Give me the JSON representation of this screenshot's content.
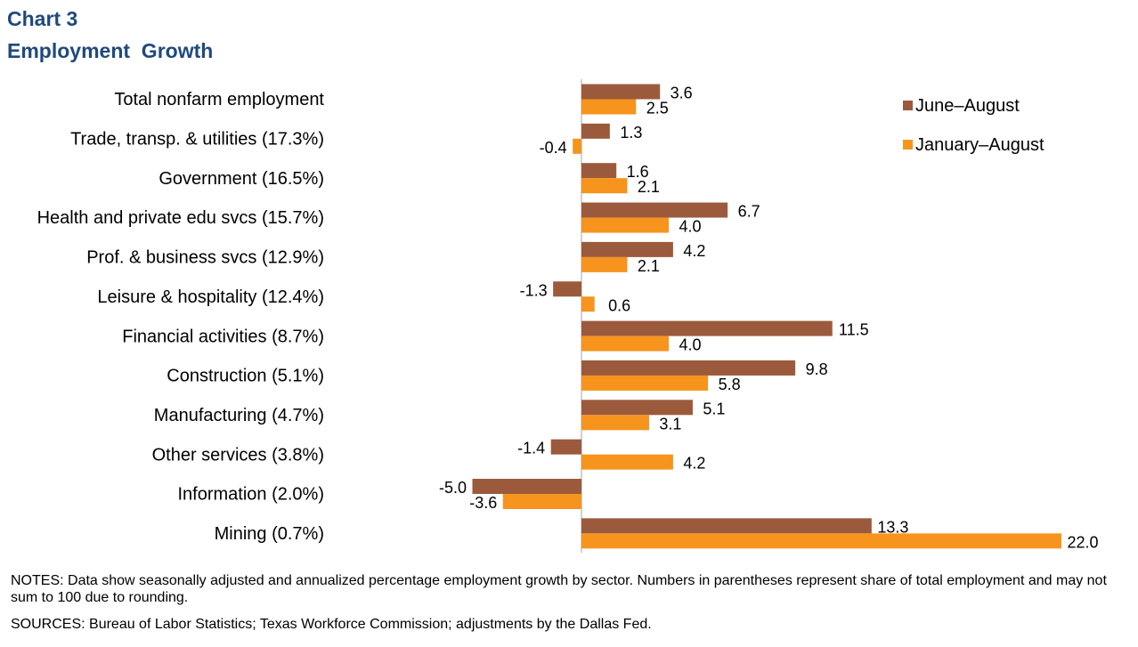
{
  "header": {
    "label": "Chart 3",
    "title": "Employment  Growth"
  },
  "chart_data": {
    "type": "bar",
    "orientation": "horizontal",
    "categories": [
      "Total nonfarm employment",
      "Trade, transp. & utilities (17.3%)",
      "Government (16.5%)",
      "Health and private edu svcs (15.7%)",
      "Prof. & business svcs (12.9%)",
      "Leisure & hospitality (12.4%)",
      "Financial activities (8.7%)",
      "Construction (5.1%)",
      "Manufacturing (4.7%)",
      "Other services (3.8%)",
      "Information (2.0%)",
      "Mining (0.7%)"
    ],
    "series": [
      {
        "name": "June–August",
        "color": "#9c5a3c",
        "values": [
          3.6,
          1.3,
          1.6,
          6.7,
          4.2,
          -1.3,
          11.5,
          9.8,
          5.1,
          -1.4,
          -5.0,
          13.3
        ],
        "labels": [
          "3.6",
          "1.3",
          "1.6",
          "6.7",
          "4.2",
          "-1.3",
          "11.5",
          "9.8",
          "5.1",
          "-1.4",
          "-5.0",
          "13.3"
        ]
      },
      {
        "name": "January–August",
        "color": "#f7941d",
        "values": [
          2.5,
          -0.4,
          2.1,
          4.0,
          2.1,
          0.6,
          4.0,
          5.8,
          3.1,
          4.2,
          -3.6,
          22.0
        ],
        "labels": [
          "2.5",
          "-0.4",
          "2.1",
          "4.0",
          "2.1",
          "0.6",
          "4.0",
          "5.8",
          "3.1",
          "4.2",
          "-3.6",
          "22.0"
        ]
      }
    ],
    "xlim": [
      -5,
      22
    ],
    "grid": false,
    "legend_position": "top-right"
  },
  "footer": {
    "notes": "NOTES: Data show seasonally adjusted and annualized percentage employment growth by sector. Numbers in parentheses represent share of total employment and may not sum to 100 due to rounding.",
    "sources": "SOURCES: Bureau of Labor Statistics; Texas Workforce Commission; adjustments by the Dallas Fed."
  }
}
